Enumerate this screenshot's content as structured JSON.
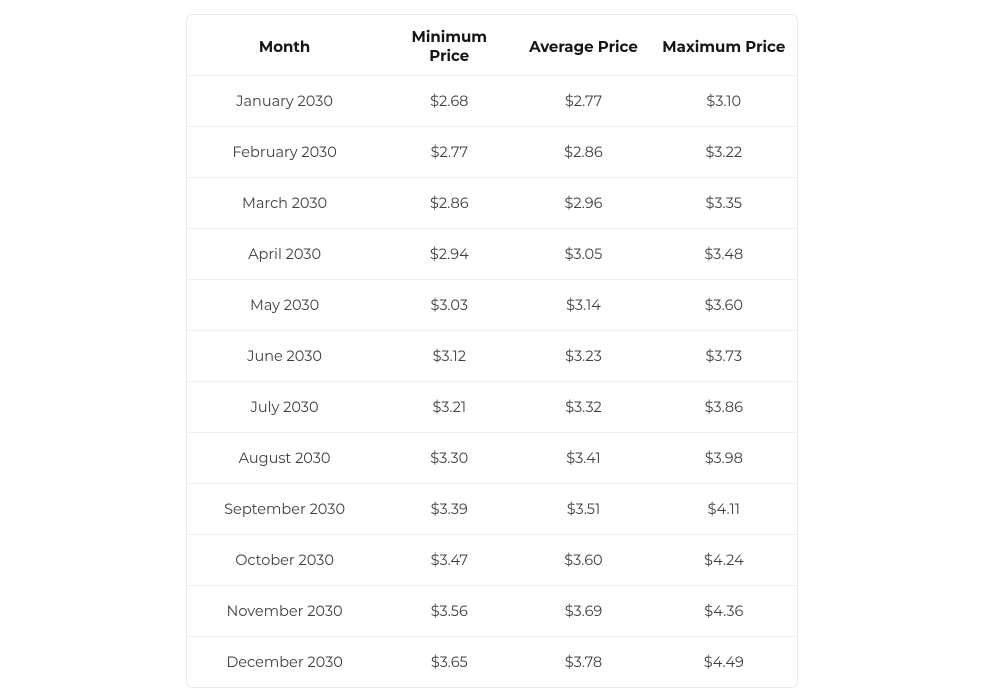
{
  "table": {
    "type": "table",
    "border_color": "#e9e9e9",
    "row_divider_color": "#f0f0f0",
    "background_color": "#ffffff",
    "header_text_color": "#161616",
    "body_text_color": "#404040",
    "header_fontsize": 15,
    "body_fontsize": 14.5,
    "columns": [
      {
        "key": "month",
        "label": "Month",
        "width_pct": 32,
        "align": "center"
      },
      {
        "key": "min",
        "label": "Minimum Price",
        "width_pct": 22,
        "align": "center"
      },
      {
        "key": "avg",
        "label": "Average Price",
        "width_pct": 22,
        "align": "center"
      },
      {
        "key": "max",
        "label": "Maximum Price",
        "width_pct": 24,
        "align": "center"
      }
    ],
    "rows": [
      {
        "month": "January 2030",
        "min": "$2.68",
        "avg": "$2.77",
        "max": "$3.10"
      },
      {
        "month": "February 2030",
        "min": "$2.77",
        "avg": "$2.86",
        "max": "$3.22"
      },
      {
        "month": "March 2030",
        "min": "$2.86",
        "avg": "$2.96",
        "max": "$3.35"
      },
      {
        "month": "April 2030",
        "min": "$2.94",
        "avg": "$3.05",
        "max": "$3.48"
      },
      {
        "month": "May 2030",
        "min": "$3.03",
        "avg": "$3.14",
        "max": "$3.60"
      },
      {
        "month": "June 2030",
        "min": "$3.12",
        "avg": "$3.23",
        "max": "$3.73"
      },
      {
        "month": "July 2030",
        "min": "$3.21",
        "avg": "$3.32",
        "max": "$3.86"
      },
      {
        "month": "August 2030",
        "min": "$3.30",
        "avg": "$3.41",
        "max": "$3.98"
      },
      {
        "month": "September 2030",
        "min": "$3.39",
        "avg": "$3.51",
        "max": "$4.11"
      },
      {
        "month": "October 2030",
        "min": "$3.47",
        "avg": "$3.60",
        "max": "$4.24"
      },
      {
        "month": "November 2030",
        "min": "$3.56",
        "avg": "$3.69",
        "max": "$4.36"
      },
      {
        "month": "December 2030",
        "min": "$3.65",
        "avg": "$3.78",
        "max": "$4.49"
      }
    ]
  }
}
